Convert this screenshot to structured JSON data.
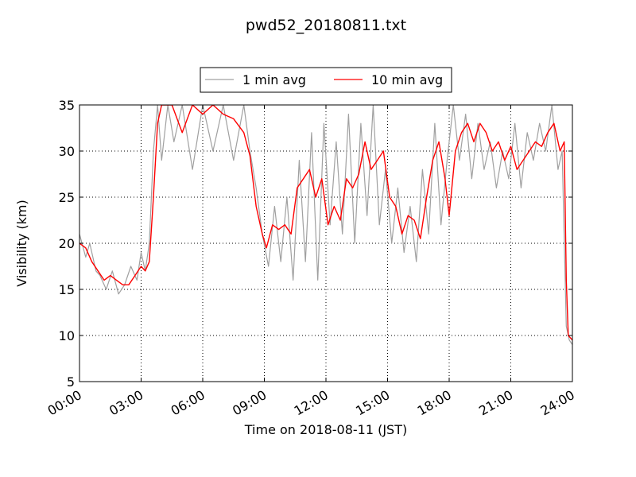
{
  "chart_data": {
    "type": "line",
    "title": "pwd52_20180811.txt",
    "xlabel": "Time on 2018-08-11 (JST)",
    "ylabel": "Visibility (km)",
    "x_unit": "hours",
    "xlim": [
      0,
      24
    ],
    "ylim": [
      5,
      35
    ],
    "x_ticks": [
      0,
      3,
      6,
      9,
      12,
      15,
      18,
      21,
      24
    ],
    "x_tick_labels": [
      "00:00",
      "03:00",
      "06:00",
      "09:00",
      "12:00",
      "15:00",
      "18:00",
      "21:00",
      "24:00"
    ],
    "y_ticks": [
      5,
      10,
      15,
      20,
      25,
      30,
      35
    ],
    "y_tick_labels": [
      "5",
      "10",
      "15",
      "20",
      "25",
      "30",
      "35"
    ],
    "grid": true,
    "legend_position": "top-center",
    "series": [
      {
        "name": "1 min avg",
        "color": "#a0a0a0",
        "x": [
          0.0,
          0.3,
          0.5,
          0.8,
          1.0,
          1.3,
          1.6,
          1.9,
          2.2,
          2.5,
          2.8,
          3.0,
          3.2,
          3.4,
          3.6,
          3.8,
          4.0,
          4.3,
          4.6,
          5.0,
          5.5,
          6.0,
          6.5,
          7.0,
          7.5,
          8.0,
          8.3,
          8.6,
          8.9,
          9.2,
          9.5,
          9.8,
          10.1,
          10.4,
          10.7,
          11.0,
          11.3,
          11.6,
          11.9,
          12.2,
          12.5,
          12.8,
          13.1,
          13.4,
          13.7,
          14.0,
          14.3,
          14.6,
          14.9,
          15.2,
          15.5,
          15.8,
          16.1,
          16.4,
          16.7,
          17.0,
          17.3,
          17.6,
          17.9,
          18.2,
          18.5,
          18.8,
          19.1,
          19.4,
          19.7,
          20.0,
          20.3,
          20.6,
          20.9,
          21.2,
          21.5,
          21.8,
          22.1,
          22.4,
          22.7,
          23.0,
          23.3,
          23.5,
          23.7,
          23.85,
          24.0
        ],
        "y": [
          21.0,
          18.5,
          20.0,
          17.0,
          16.5,
          15.0,
          17.0,
          14.5,
          15.5,
          17.5,
          16.0,
          19.0,
          17.0,
          20.0,
          30.0,
          35.0,
          29.0,
          35.0,
          31.0,
          35.0,
          28.0,
          35.0,
          30.0,
          35.0,
          29.0,
          35.0,
          30.0,
          26.0,
          21.0,
          17.5,
          24.0,
          18.0,
          25.0,
          16.0,
          29.0,
          18.0,
          32.0,
          16.0,
          33.0,
          22.0,
          31.0,
          21.0,
          34.0,
          20.0,
          33.0,
          23.0,
          35.0,
          22.0,
          28.0,
          20.0,
          26.0,
          19.0,
          24.0,
          18.0,
          28.0,
          21.0,
          33.0,
          22.0,
          29.0,
          35.0,
          29.0,
          34.0,
          27.0,
          33.0,
          28.0,
          31.0,
          26.0,
          30.0,
          27.0,
          33.0,
          26.0,
          32.0,
          29.0,
          33.0,
          30.0,
          35.0,
          28.0,
          30.0,
          11.0,
          9.5,
          9.0
        ]
      },
      {
        "name": "10 min avg",
        "color": "#ff0000",
        "x": [
          0.0,
          0.3,
          0.6,
          0.9,
          1.2,
          1.5,
          1.8,
          2.1,
          2.4,
          2.7,
          3.0,
          3.2,
          3.4,
          3.6,
          3.8,
          4.0,
          4.5,
          5.0,
          5.5,
          6.0,
          6.5,
          7.0,
          7.5,
          8.0,
          8.3,
          8.6,
          8.9,
          9.1,
          9.4,
          9.7,
          10.0,
          10.3,
          10.6,
          10.9,
          11.2,
          11.5,
          11.8,
          12.1,
          12.4,
          12.7,
          13.0,
          13.3,
          13.6,
          13.9,
          14.2,
          14.5,
          14.8,
          15.1,
          15.4,
          15.7,
          16.0,
          16.3,
          16.6,
          16.9,
          17.2,
          17.5,
          17.8,
          18.0,
          18.3,
          18.6,
          18.9,
          19.2,
          19.5,
          19.8,
          20.1,
          20.4,
          20.7,
          21.0,
          21.3,
          21.6,
          21.9,
          22.2,
          22.5,
          22.8,
          23.1,
          23.4,
          23.6,
          23.7,
          23.8,
          24.0
        ],
        "y": [
          20.0,
          19.5,
          18.0,
          17.0,
          16.0,
          16.5,
          16.0,
          15.5,
          15.5,
          16.5,
          17.5,
          17.0,
          18.0,
          25.0,
          33.0,
          35.0,
          35.0,
          32.0,
          35.0,
          34.0,
          35.0,
          34.0,
          33.5,
          32.0,
          29.5,
          24.0,
          21.0,
          19.5,
          22.0,
          21.5,
          22.0,
          21.0,
          26.0,
          27.0,
          28.0,
          25.0,
          27.0,
          22.0,
          24.0,
          22.5,
          27.0,
          26.0,
          27.5,
          31.0,
          28.0,
          29.0,
          30.0,
          25.0,
          24.0,
          21.0,
          23.0,
          22.5,
          20.5,
          25.0,
          29.0,
          31.0,
          27.0,
          23.0,
          30.0,
          32.0,
          33.0,
          31.0,
          33.0,
          32.0,
          30.0,
          31.0,
          29.0,
          30.5,
          28.0,
          29.0,
          30.0,
          31.0,
          30.5,
          32.0,
          33.0,
          30.0,
          31.0,
          16.0,
          10.0,
          9.5
        ]
      }
    ]
  }
}
